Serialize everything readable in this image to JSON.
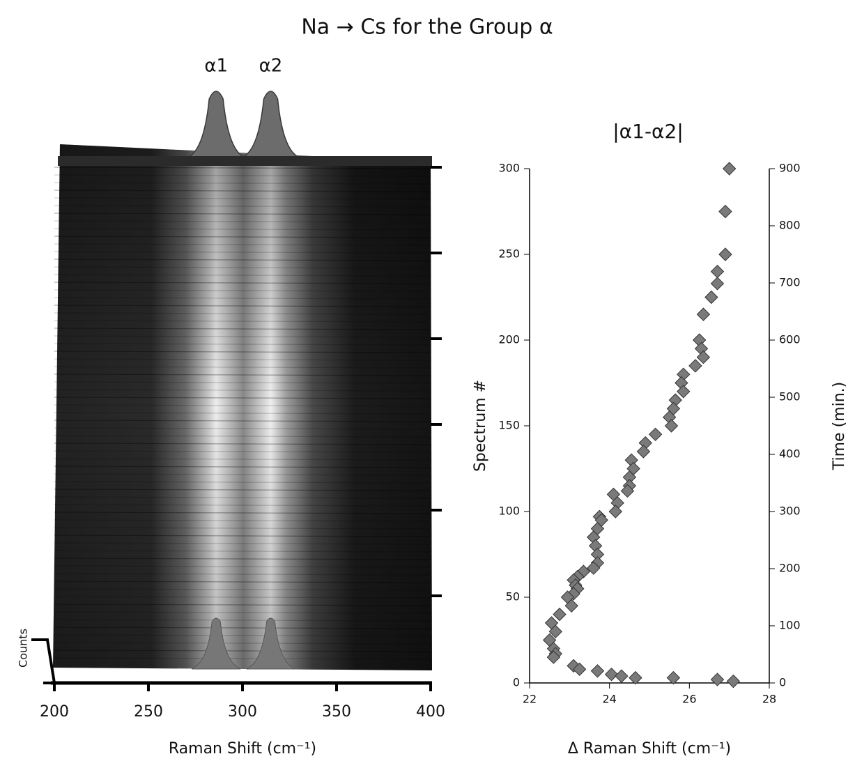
{
  "title": "Na → Cs for the Group α",
  "chart_data": [
    {
      "type": "waterfall",
      "xlabel": "Raman Shift (cm⁻¹)",
      "ylabel": "Counts",
      "xlim": [
        200,
        400
      ],
      "xticks": [
        200,
        250,
        300,
        350,
        400
      ],
      "annotations": [
        {
          "text": "α1",
          "x": 286
        },
        {
          "text": "α2",
          "x": 315
        }
      ]
    },
    {
      "type": "scatter",
      "title": "|α1-α2|",
      "xlabel": "Δ Raman Shift (cm⁻¹)",
      "ylabel": "Spectrum #",
      "y2label": "Time (min.)",
      "color": "#7a7a7a",
      "grid": false,
      "xlim": [
        22,
        28
      ],
      "xticks": [
        22,
        24,
        26,
        28
      ],
      "ylim": [
        0,
        300
      ],
      "yticks": [
        0,
        50,
        100,
        150,
        200,
        250,
        300
      ],
      "y2lim": [
        0,
        900
      ],
      "y2ticks": [
        0,
        100,
        200,
        300,
        400,
        500,
        600,
        700,
        800,
        900
      ],
      "x": [
        27.0,
        26.9,
        26.9,
        26.7,
        26.7,
        26.55,
        26.35,
        26.25,
        26.3,
        26.35,
        26.15,
        25.85,
        25.8,
        25.85,
        25.65,
        25.6,
        25.5,
        25.55,
        25.15,
        24.9,
        24.85,
        24.55,
        24.6,
        24.5,
        24.5,
        24.45,
        24.1,
        24.2,
        24.15,
        23.75,
        23.8,
        23.7,
        23.6,
        23.65,
        23.7,
        23.7,
        23.6,
        23.35,
        23.2,
        23.1,
        23.15,
        23.2,
        23.1,
        22.95,
        23.05,
        22.75,
        22.55,
        22.65,
        22.5,
        22.6,
        22.65,
        22.6,
        23.1,
        23.25,
        23.7,
        24.05,
        24.3,
        24.65,
        25.6,
        26.7,
        27.1
      ],
      "values": [
        300,
        275,
        250,
        240,
        233,
        225,
        215,
        200,
        195,
        190,
        185,
        180,
        175,
        170,
        165,
        160,
        155,
        150,
        145,
        140,
        135,
        130,
        125,
        120,
        115,
        112,
        110,
        105,
        100,
        97,
        95,
        90,
        85,
        80,
        75,
        70,
        67,
        65,
        62,
        60,
        57,
        55,
        52,
        50,
        45,
        40,
        35,
        30,
        25,
        20,
        17,
        15,
        10,
        8,
        7,
        5,
        4,
        3,
        3,
        2,
        1
      ]
    }
  ]
}
